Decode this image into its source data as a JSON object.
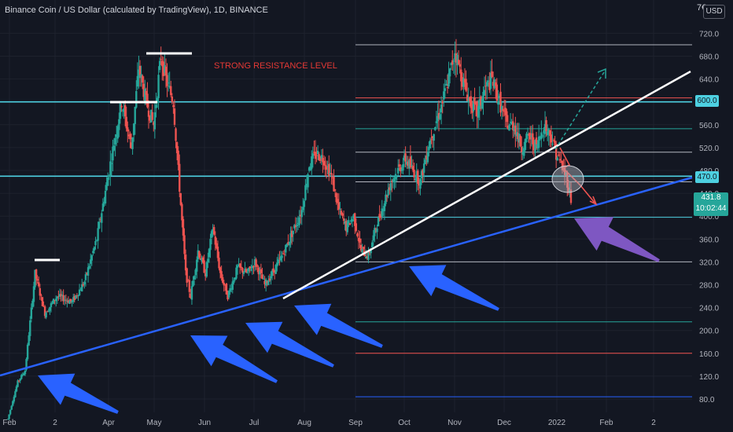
{
  "header": {
    "title": "Binance Coin / US Dollar (calculated by TradingView), 1D, BINANCE"
  },
  "currency_button": "USD",
  "top_tick_fragment": "7€",
  "annotation": "STRONG RESISTANCE LEVEL",
  "colors": {
    "background": "#131722",
    "up": "#26a69a",
    "down": "#ef5350",
    "cyan": "#4dd0e1",
    "blue_trend": "#2962ff",
    "white_trend": "#ffffff",
    "arrow_blue": "#2962ff",
    "arrow_purple": "#7e57c2"
  },
  "price_badges": {
    "cyan_upper": "600.0",
    "cyan_lower": "470.0"
  },
  "last_price": {
    "price": "431.8",
    "countdown": "10:02:44"
  },
  "chart_data": {
    "type": "candlestick",
    "title": "Binance Coin / US Dollar (calculated by TradingView), 1D, BINANCE",
    "y_ticks": [
      "720.0",
      "680.0",
      "640.0",
      "600.0",
      "560.0",
      "520.0",
      "480.0",
      "440.0",
      "400.0",
      "360.0",
      "320.0",
      "280.0",
      "240.0",
      "200.0",
      "160.0",
      "120.0",
      "80.0"
    ],
    "x_ticks": [
      "Feb",
      "2",
      "Apr",
      "May",
      "Jun",
      "Jul",
      "Aug",
      "Sep",
      "Oct",
      "Nov",
      "Dec",
      "2022",
      "Feb",
      "2"
    ],
    "ylim": [
      60,
      760
    ],
    "price_anchors": [
      [
        0,
        45
      ],
      [
        8,
        110
      ],
      [
        14,
        130
      ],
      [
        22,
        300
      ],
      [
        30,
        230
      ],
      [
        40,
        260
      ],
      [
        52,
        250
      ],
      [
        62,
        285
      ],
      [
        72,
        360
      ],
      [
        82,
        480
      ],
      [
        92,
        600
      ],
      [
        100,
        520
      ],
      [
        106,
        660
      ],
      [
        112,
        600
      ],
      [
        118,
        560
      ],
      [
        124,
        680
      ],
      [
        128,
        640
      ],
      [
        134,
        600
      ],
      [
        140,
        420
      ],
      [
        144,
        300
      ],
      [
        148,
        260
      ],
      [
        154,
        340
      ],
      [
        160,
        300
      ],
      [
        166,
        380
      ],
      [
        172,
        300
      ],
      [
        178,
        260
      ],
      [
        186,
        310
      ],
      [
        194,
        300
      ],
      [
        200,
        320
      ],
      [
        208,
        280
      ],
      [
        214,
        300
      ],
      [
        222,
        330
      ],
      [
        230,
        370
      ],
      [
        238,
        410
      ],
      [
        244,
        490
      ],
      [
        250,
        510
      ],
      [
        256,
        500
      ],
      [
        262,
        470
      ],
      [
        268,
        410
      ],
      [
        274,
        380
      ],
      [
        280,
        400
      ],
      [
        286,
        340
      ],
      [
        292,
        330
      ],
      [
        298,
        380
      ],
      [
        304,
        420
      ],
      [
        310,
        460
      ],
      [
        316,
        480
      ],
      [
        322,
        500
      ],
      [
        328,
        480
      ],
      [
        334,
        460
      ],
      [
        340,
        520
      ],
      [
        346,
        560
      ],
      [
        352,
        600
      ],
      [
        358,
        650
      ],
      [
        362,
        690
      ],
      [
        368,
        640
      ],
      [
        374,
        600
      ],
      [
        380,
        580
      ],
      [
        386,
        620
      ],
      [
        392,
        640
      ],
      [
        398,
        600
      ],
      [
        404,
        560
      ],
      [
        410,
        560
      ],
      [
        416,
        520
      ],
      [
        422,
        540
      ],
      [
        428,
        520
      ],
      [
        434,
        560
      ],
      [
        440,
        540
      ],
      [
        444,
        510
      ],
      [
        448,
        490
      ],
      [
        452,
        470
      ],
      [
        456,
        430
      ]
    ],
    "horizontal_levels": [
      {
        "price": 700,
        "color": "#b2b5be"
      },
      {
        "price": 607,
        "color": "#ef5350"
      },
      {
        "price": 600,
        "color": "#4dd0e1"
      },
      {
        "price": 553,
        "color": "#26a69a"
      },
      {
        "price": 512,
        "color": "#b2b5be"
      },
      {
        "price": 470,
        "color": "#4dd0e1"
      },
      {
        "price": 460,
        "color": "#b2b5be"
      },
      {
        "price": 398,
        "color": "#4dd0e1"
      },
      {
        "price": 320,
        "color": "#b2b5be"
      },
      {
        "price": 215,
        "color": "#26a69a"
      },
      {
        "price": 160,
        "color": "#ef5350"
      },
      {
        "price": 84,
        "color": "#2962ff"
      }
    ]
  }
}
